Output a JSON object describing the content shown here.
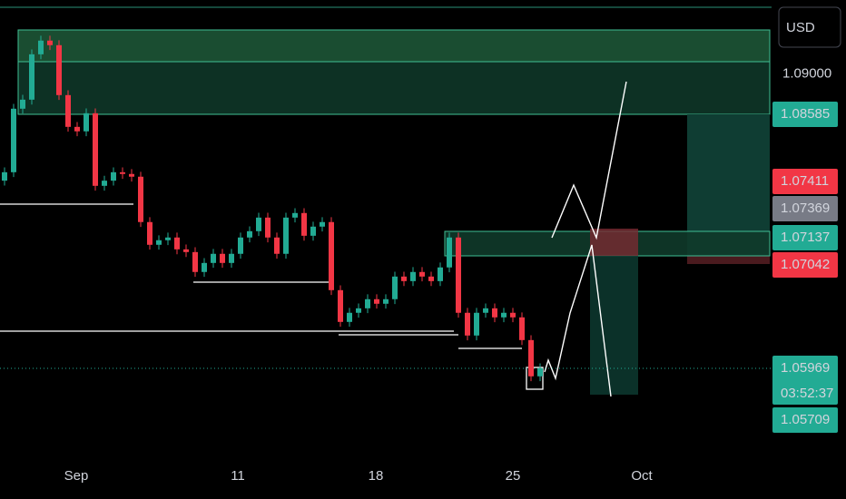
{
  "chart_data": {
    "type": "candlestick",
    "currency": "USD",
    "up_color": "#22ab94",
    "down_color": "#f23645",
    "open": [
      1.079,
      1.07987,
      1.08641,
      1.08734,
      1.09201,
      1.09342,
      1.09295,
      1.08781,
      1.08454,
      1.08408,
      1.08594,
      1.07847,
      1.079,
      1.07987,
      1.07969,
      1.07941,
      1.07474,
      1.0724,
      1.07287,
      1.07315,
      1.07193,
      1.07165,
      1.0696,
      1.07053,
      1.07147,
      1.07053,
      1.07147,
      1.07315,
      1.0738,
      1.0752,
      1.07315,
      1.07147,
      1.0752,
      1.07567,
      1.07333,
      1.07427,
      1.07474,
      1.06773,
      1.06446,
      1.0654,
      1.06586,
      1.0668,
      1.06633,
      1.0668,
      1.06913,
      1.06866,
      1.0696,
      1.06913,
      1.06866,
      1.07007,
      1.07315,
      1.0654,
      1.06306,
      1.0654,
      1.06586,
      1.06493,
      1.0654,
      1.06493,
      1.06259,
      1.05886
    ],
    "high": [
      1.08037,
      1.08691,
      1.08784,
      1.09251,
      1.09392,
      1.09392,
      1.09345,
      1.08831,
      1.08504,
      1.08644,
      1.08644,
      1.0795,
      1.08037,
      1.08037,
      1.08019,
      1.07991,
      1.07524,
      1.07337,
      1.07365,
      1.07365,
      1.07243,
      1.07215,
      1.07103,
      1.07197,
      1.07197,
      1.07197,
      1.07365,
      1.0743,
      1.0757,
      1.0757,
      1.07365,
      1.0757,
      1.07617,
      1.07617,
      1.07477,
      1.07524,
      1.07524,
      1.06823,
      1.0659,
      1.06636,
      1.0673,
      1.0673,
      1.0673,
      1.06963,
      1.06963,
      1.0701,
      1.0701,
      1.06963,
      1.07057,
      1.07365,
      1.07365,
      1.0659,
      1.0659,
      1.06636,
      1.06636,
      1.0659,
      1.0659,
      1.06543,
      1.06309,
      1.06019
    ],
    "low": [
      1.0785,
      1.07937,
      1.08591,
      1.08684,
      1.09151,
      1.09245,
      1.08731,
      1.08404,
      1.08358,
      1.08358,
      1.07797,
      1.07797,
      1.0785,
      1.07919,
      1.07891,
      1.07424,
      1.0719,
      1.0719,
      1.07237,
      1.07143,
      1.07115,
      1.0691,
      1.0691,
      1.07003,
      1.07003,
      1.07003,
      1.07097,
      1.07265,
      1.0733,
      1.07265,
      1.07097,
      1.07097,
      1.0747,
      1.07283,
      1.07283,
      1.07377,
      1.06723,
      1.06396,
      1.06396,
      1.0649,
      1.06536,
      1.06583,
      1.06583,
      1.0663,
      1.06816,
      1.06816,
      1.06863,
      1.06816,
      1.06816,
      1.06957,
      1.0649,
      1.06256,
      1.06256,
      1.0649,
      1.06443,
      1.06443,
      1.06443,
      1.06209,
      1.05836,
      1.05836
    ],
    "close": [
      1.07987,
      1.08641,
      1.08734,
      1.09201,
      1.09342,
      1.09295,
      1.08781,
      1.08454,
      1.08408,
      1.08594,
      1.07847,
      1.079,
      1.07987,
      1.07969,
      1.07941,
      1.07474,
      1.0724,
      1.07287,
      1.07315,
      1.07193,
      1.07165,
      1.0696,
      1.07053,
      1.07147,
      1.07053,
      1.07147,
      1.07315,
      1.0738,
      1.0752,
      1.07315,
      1.07147,
      1.0752,
      1.07567,
      1.07333,
      1.07427,
      1.07474,
      1.06773,
      1.06446,
      1.0654,
      1.06586,
      1.0668,
      1.06633,
      1.0668,
      1.06913,
      1.06866,
      1.0696,
      1.06913,
      1.06866,
      1.07007,
      1.07315,
      1.0654,
      1.06306,
      1.0654,
      1.06586,
      1.06493,
      1.0654,
      1.06493,
      1.06259,
      1.05886,
      1.05969
    ],
    "xlim": [
      -0.5,
      84.5
    ],
    "xticks": [
      {
        "value": 7.9,
        "label": "Sep"
      },
      {
        "value": 25.7,
        "label": "11"
      },
      {
        "value": 40.9,
        "label": "18"
      },
      {
        "value": 56,
        "label": "25"
      },
      {
        "value": 70.2,
        "label": "Oct"
      }
    ],
    "ylim": [
      1.0509,
      1.0976
    ],
    "yticks": [
      {
        "value": 1.09,
        "label": "1.09000"
      }
    ],
    "price_labels": [
      {
        "text": "1.08585",
        "color": "#22ab94"
      },
      {
        "text": "1.07411",
        "color": "#f23645"
      },
      {
        "text": "1.07369",
        "color": "#787b86"
      },
      {
        "text": "1.07137",
        "color": "#22ab94"
      },
      {
        "text": "1.07042",
        "color": "#f23645"
      },
      {
        "text": "1.05969",
        "color": "#22ab94"
      },
      {
        "text": "1.05709",
        "color": "#22ab94"
      }
    ],
    "countdown": "03:52:37"
  }
}
